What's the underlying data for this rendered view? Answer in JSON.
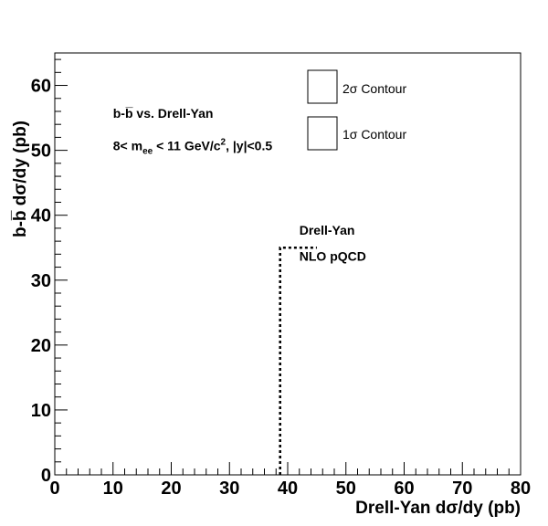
{
  "chart_data": {
    "type": "line",
    "title": "",
    "xlabel": "Drell-Yan dσ/dy (pb)",
    "ylabel": "b-b̅ dσ/dy (pb)",
    "xlim": [
      0,
      80
    ],
    "ylim": [
      0,
      65
    ],
    "x_ticks": [
      0,
      10,
      20,
      30,
      40,
      50,
      60,
      70,
      80
    ],
    "y_ticks": [
      0,
      10,
      20,
      30,
      40,
      50,
      60
    ],
    "grid": false,
    "series": [
      {
        "name": "",
        "style": "dotted",
        "color": "#000000",
        "points": [
          [
            38.7,
            0
          ],
          [
            38.7,
            35
          ],
          [
            45,
            35
          ]
        ]
      }
    ],
    "annotations": [
      {
        "text": "b-b̅ vs. Drell-Yan",
        "x": 10,
        "y": 55
      },
      {
        "text_parts": [
          "8< m",
          "ee",
          " < 11 GeV/c",
          "2",
          ", |y|<0.5"
        ],
        "x": 10,
        "y": 50
      },
      {
        "text": "Drell-Yan",
        "x": 42,
        "y": 37
      },
      {
        "text": "NLO pQCD",
        "x": 42,
        "y": 33
      }
    ],
    "legend": {
      "placement": "top-right",
      "entries": [
        {
          "label": "2σ Contour"
        },
        {
          "label": "1σ Contour"
        }
      ]
    }
  }
}
